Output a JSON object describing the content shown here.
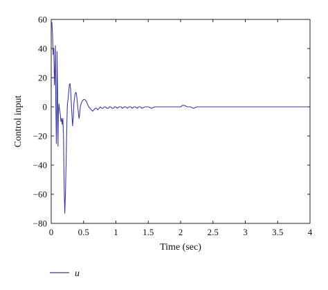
{
  "chart_data": {
    "type": "line",
    "title": "",
    "xlabel": "Time (sec)",
    "ylabel": "Control input",
    "xlim": [
      0,
      4
    ],
    "ylim": [
      -80,
      60
    ],
    "xticks": [
      0,
      0.5,
      1,
      1.5,
      2,
      2.5,
      3,
      3.5,
      4
    ],
    "xtick_labels": [
      "0",
      "0.5",
      "1",
      "1.5",
      "2",
      "2.5",
      "3",
      "3.5",
      "4"
    ],
    "yticks": [
      -80,
      -60,
      -40,
      -20,
      0,
      20,
      40,
      60
    ],
    "ytick_labels": [
      "−80",
      "−60",
      "−40",
      "−20",
      "0",
      "20",
      "40",
      "60"
    ],
    "grid": false,
    "legend_position": "bottom-left",
    "series": [
      {
        "name": "u",
        "color": "#3b3b9e",
        "x": [
          0,
          0.01,
          0.02,
          0.03,
          0.04,
          0.05,
          0.06,
          0.065,
          0.07,
          0.08,
          0.085,
          0.09,
          0.1,
          0.105,
          0.11,
          0.12,
          0.13,
          0.14,
          0.15,
          0.16,
          0.17,
          0.18,
          0.19,
          0.2,
          0.21,
          0.22,
          0.23,
          0.24,
          0.25,
          0.26,
          0.27,
          0.28,
          0.29,
          0.3,
          0.31,
          0.32,
          0.33,
          0.34,
          0.35,
          0.36,
          0.37,
          0.38,
          0.39,
          0.4,
          0.41,
          0.42,
          0.43,
          0.44,
          0.45,
          0.46,
          0.47,
          0.48,
          0.5,
          0.52,
          0.54,
          0.55,
          0.56,
          0.57,
          0.58,
          0.6,
          0.62,
          0.64,
          0.66,
          0.68,
          0.7,
          0.72,
          0.74,
          0.76,
          0.78,
          0.8,
          0.82,
          0.84,
          0.86,
          0.88,
          0.9,
          0.92,
          0.94,
          0.96,
          0.98,
          1.0,
          1.02,
          1.05,
          1.08,
          1.1,
          1.13,
          1.15,
          1.18,
          1.2,
          1.23,
          1.25,
          1.28,
          1.3,
          1.33,
          1.35,
          1.38,
          1.4,
          1.45,
          1.5,
          1.55,
          1.6,
          1.65,
          1.7,
          1.75,
          1.8,
          1.85,
          1.9,
          1.95,
          2.0,
          2.03,
          2.06,
          2.1,
          2.15,
          2.2,
          2.25,
          2.3,
          2.35,
          2.4,
          2.5,
          2.6,
          2.7,
          2.8,
          2.9,
          3.0,
          3.2,
          3.4,
          3.6,
          3.8,
          4.0
        ],
        "y": [
          55,
          58,
          50,
          36,
          40,
          15,
          28,
          42,
          5,
          -25,
          -12,
          38,
          8,
          -27,
          -5,
          2,
          -2,
          -5,
          -10,
          -8,
          -12,
          -8,
          -20,
          -55,
          -73,
          -60,
          -40,
          -15,
          2,
          5,
          10,
          15,
          16,
          12,
          3,
          -5,
          -13,
          -8,
          2,
          6,
          9,
          10,
          9,
          5,
          0,
          -4,
          -8,
          -5,
          0,
          2,
          3,
          4,
          5,
          5,
          4,
          3,
          2,
          1,
          0,
          -1,
          -2,
          -3,
          -2,
          -1,
          -1,
          -2,
          -1,
          0,
          -1,
          -1,
          0,
          0,
          -1,
          -1,
          0,
          0,
          -1,
          -1,
          0,
          0,
          -1,
          0,
          0,
          -1,
          0,
          0,
          -1,
          0,
          0,
          -1,
          0,
          0,
          -1,
          0,
          0,
          -1,
          0,
          0,
          -1,
          0,
          0,
          0,
          0,
          0,
          0,
          0,
          0,
          0,
          1,
          1,
          0,
          0,
          -1,
          0,
          0,
          0,
          0,
          0,
          0,
          0,
          0,
          0,
          0,
          0,
          0,
          0,
          0,
          0
        ]
      }
    ]
  }
}
